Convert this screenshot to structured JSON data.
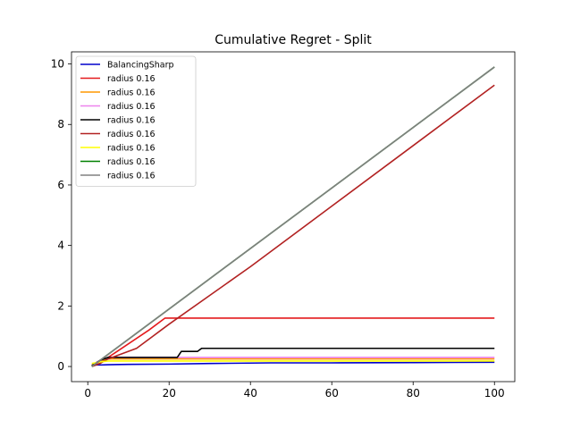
{
  "chart_data": {
    "type": "line",
    "title": "Cumulative Regret - Split",
    "xlabel": "",
    "ylabel": "",
    "xlim": [
      -4,
      105
    ],
    "ylim": [
      -0.5,
      10.4
    ],
    "xticks": [
      0,
      20,
      40,
      60,
      80,
      100
    ],
    "yticks": [
      0,
      2,
      4,
      6,
      8,
      10
    ],
    "grid": false,
    "legend_position": "top-left",
    "series": [
      {
        "name": "BalancingSharp",
        "color": "#0000cc",
        "points": [
          [
            1,
            0.05
          ],
          [
            3,
            0.05
          ],
          [
            5,
            0.06
          ],
          [
            10,
            0.07
          ],
          [
            20,
            0.08
          ],
          [
            30,
            0.1
          ],
          [
            45,
            0.12
          ],
          [
            60,
            0.12
          ],
          [
            80,
            0.13
          ],
          [
            100,
            0.14
          ]
        ]
      },
      {
        "name": "radius 0.16",
        "color": "#e41a1c",
        "points": [
          [
            1,
            0.02
          ],
          [
            3,
            0.1
          ],
          [
            5,
            0.3
          ],
          [
            10,
            0.75
          ],
          [
            15,
            1.2
          ],
          [
            19,
            1.6
          ],
          [
            40,
            1.6
          ],
          [
            60,
            1.6
          ],
          [
            80,
            1.6
          ],
          [
            100,
            1.6
          ]
        ]
      },
      {
        "name": "radius 0.16",
        "color": "#ff9900",
        "points": [
          [
            1,
            0.05
          ],
          [
            3,
            0.2
          ],
          [
            5,
            0.25
          ],
          [
            10,
            0.25
          ],
          [
            50,
            0.25
          ],
          [
            100,
            0.25
          ]
        ]
      },
      {
        "name": "radius 0.16",
        "color": "#ee82ee",
        "points": [
          [
            1,
            0.05
          ],
          [
            3,
            0.2
          ],
          [
            5,
            0.3
          ],
          [
            10,
            0.3
          ],
          [
            50,
            0.3
          ],
          [
            100,
            0.3
          ]
        ]
      },
      {
        "name": "radius 0.16",
        "color": "#000000",
        "points": [
          [
            1,
            0.03
          ],
          [
            3,
            0.2
          ],
          [
            5,
            0.3
          ],
          [
            10,
            0.3
          ],
          [
            22,
            0.3
          ],
          [
            23,
            0.5
          ],
          [
            27,
            0.5
          ],
          [
            28,
            0.6
          ],
          [
            50,
            0.6
          ],
          [
            100,
            0.6
          ]
        ]
      },
      {
        "name": "radius 0.16",
        "color": "#b22222",
        "points": [
          [
            1,
            0.0
          ],
          [
            3,
            0.1
          ],
          [
            5,
            0.25
          ],
          [
            8,
            0.4
          ],
          [
            10,
            0.5
          ],
          [
            12,
            0.6
          ],
          [
            14,
            0.8
          ],
          [
            16,
            1.0
          ],
          [
            18,
            1.2
          ],
          [
            20,
            1.4
          ],
          [
            30,
            2.35
          ],
          [
            40,
            3.3
          ],
          [
            60,
            5.3
          ],
          [
            80,
            7.3
          ],
          [
            100,
            9.3
          ]
        ]
      },
      {
        "name": "radius 0.16",
        "color": "#ffff00",
        "points": [
          [
            1,
            0.1
          ],
          [
            3,
            0.15
          ],
          [
            5,
            0.18
          ],
          [
            10,
            0.18
          ],
          [
            50,
            0.18
          ],
          [
            100,
            0.18
          ]
        ]
      },
      {
        "name": "radius 0.16",
        "color": "#008000",
        "points": [
          [
            1,
            0.0
          ],
          [
            100,
            9.9
          ]
        ]
      },
      {
        "name": "radius 0.16",
        "color": "#808080",
        "points": [
          [
            1,
            0.0
          ],
          [
            100,
            9.9
          ]
        ]
      }
    ]
  }
}
